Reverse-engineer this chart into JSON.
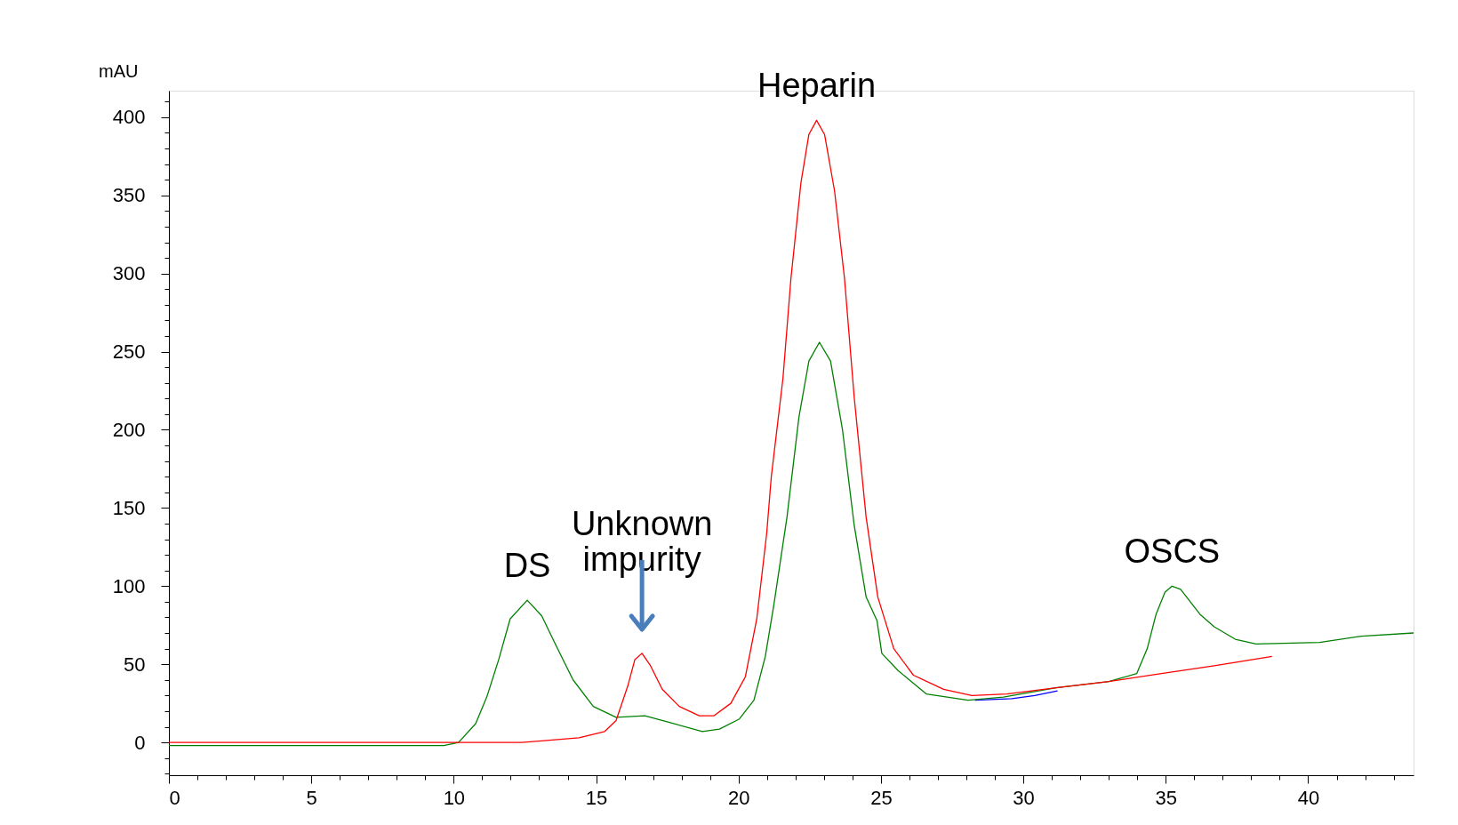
{
  "chart_data": {
    "type": "line",
    "ylabel": "mAU",
    "xlim": [
      0,
      43.7
    ],
    "ylim": [
      -21,
      417
    ],
    "xticks": [
      0,
      {
        "value": 1,
        "label": null
      },
      {
        "value": 2,
        "label": null
      },
      {
        "value": 3,
        "label": null
      },
      {
        "value": 4,
        "label": null
      },
      5,
      {
        "value": 6,
        "label": null
      },
      {
        "value": 7,
        "label": null
      },
      {
        "value": 8,
        "label": null
      },
      {
        "value": 9,
        "label": null
      },
      10,
      {
        "value": 11,
        "label": null
      },
      {
        "value": 12,
        "label": null
      },
      {
        "value": 13,
        "label": null
      },
      {
        "value": 14,
        "label": null
      },
      15,
      {
        "value": 16,
        "label": null
      },
      {
        "value": 17,
        "label": null
      },
      {
        "value": 18,
        "label": null
      },
      {
        "value": 19,
        "label": null
      },
      20,
      {
        "value": 21,
        "label": null
      },
      {
        "value": 22,
        "label": null
      },
      {
        "value": 23,
        "label": null
      },
      {
        "value": 24,
        "label": null
      },
      25,
      {
        "value": 26,
        "label": null
      },
      {
        "value": 27,
        "label": null
      },
      {
        "value": 28,
        "label": null
      },
      {
        "value": 29,
        "label": null
      },
      30,
      {
        "value": 31,
        "label": null
      },
      {
        "value": 32,
        "label": null
      },
      {
        "value": 33,
        "label": null
      },
      {
        "value": 34,
        "label": null
      },
      35,
      {
        "value": 36,
        "label": null
      },
      {
        "value": 37,
        "label": null
      },
      {
        "value": 38,
        "label": null
      },
      {
        "value": 39,
        "label": null
      },
      40,
      {
        "value": 41,
        "label": null
      },
      {
        "value": 42,
        "label": null
      },
      {
        "value": 43,
        "label": null
      }
    ],
    "yticks": [
      {
        "value": -20,
        "label": null
      },
      {
        "value": -10,
        "label": null
      },
      0,
      {
        "value": 10,
        "label": null
      },
      {
        "value": 20,
        "label": null
      },
      {
        "value": 30,
        "label": null
      },
      {
        "value": 40,
        "label": null
      },
      50,
      {
        "value": 60,
        "label": null
      },
      {
        "value": 70,
        "label": null
      },
      {
        "value": 80,
        "label": null
      },
      {
        "value": 90,
        "label": null
      },
      100,
      {
        "value": 110,
        "label": null
      },
      {
        "value": 120,
        "label": null
      },
      {
        "value": 130,
        "label": null
      },
      {
        "value": 140,
        "label": null
      },
      150,
      {
        "value": 160,
        "label": null
      },
      {
        "value": 170,
        "label": null
      },
      {
        "value": 180,
        "label": null
      },
      {
        "value": 190,
        "label": null
      },
      200,
      {
        "value": 210,
        "label": null
      },
      {
        "value": 220,
        "label": null
      },
      {
        "value": 230,
        "label": null
      },
      {
        "value": 240,
        "label": null
      },
      250,
      {
        "value": 260,
        "label": null
      },
      {
        "value": 270,
        "label": null
      },
      {
        "value": 280,
        "label": null
      },
      {
        "value": 290,
        "label": null
      },
      300,
      {
        "value": 310,
        "label": null
      },
      {
        "value": 320,
        "label": null
      },
      {
        "value": 330,
        "label": null
      },
      {
        "value": 340,
        "label": null
      },
      350,
      {
        "value": 360,
        "label": null
      },
      {
        "value": 370,
        "label": null
      },
      {
        "value": 380,
        "label": null
      },
      {
        "value": 390,
        "label": null
      },
      400,
      {
        "value": 410,
        "label": null
      }
    ],
    "grid": false,
    "legend": false,
    "marker": "none",
    "line_style": "solid",
    "series": [
      {
        "color": "#0000ff",
        "x": [
          28.3,
          29.6,
          30.4,
          31.2
        ],
        "values": [
          27,
          28,
          30,
          33
        ]
      },
      {
        "color": "#008000",
        "x": [
          0,
          9.65,
          10.17,
          10.77,
          11.16,
          11.58,
          11.98,
          12.58,
          13.09,
          13.59,
          14.19,
          14.9,
          15.7,
          16.71,
          17.52,
          18.73,
          19.33,
          20.03,
          20.54,
          20.94,
          21.24,
          21.7,
          22.12,
          22.47,
          22.84,
          23.23,
          23.65,
          24.06,
          24.48,
          24.86,
          25.03,
          25.6,
          26.59,
          28.06,
          29.3,
          31.15,
          33.0,
          33.98,
          34.35,
          34.66,
          34.97,
          35.22,
          35.52,
          36.2,
          36.7,
          37.44,
          38.17,
          40.4,
          41.87,
          43.7
        ],
        "values": [
          -2,
          -2,
          0,
          12,
          29,
          53,
          79,
          91,
          81,
          62,
          40,
          23,
          16,
          17,
          13,
          7,
          8.5,
          15,
          27,
          55,
          88,
          144,
          208,
          244,
          256,
          244,
          200,
          139,
          93,
          78,
          57,
          46,
          31,
          27,
          29,
          35,
          39,
          44,
          60,
          82,
          96,
          100,
          98,
          82,
          74,
          66,
          63,
          64,
          68,
          70
        ]
      },
      {
        "color": "#ff0000",
        "x": [
          0,
          12.38,
          13.09,
          14.4,
          15.3,
          15.7,
          16.11,
          16.36,
          16.61,
          16.91,
          17.32,
          17.92,
          18.62,
          19.13,
          19.73,
          20.24,
          20.64,
          20.99,
          21.15,
          21.56,
          21.84,
          22.19,
          22.47,
          22.74,
          23.02,
          23.37,
          23.72,
          24.06,
          24.48,
          24.89,
          25.45,
          26.14,
          27.2,
          28.19,
          29.42,
          31.15,
          33.0,
          34.85,
          36.7,
          38.73
        ],
        "values": [
          0,
          0,
          1,
          3,
          7,
          14,
          36,
          53,
          57,
          49,
          34,
          23,
          17,
          17,
          25,
          42,
          79,
          134,
          170,
          233,
          297,
          358,
          389,
          398,
          389,
          353,
          297,
          221,
          144,
          93,
          60,
          43,
          34,
          30,
          31,
          35,
          39,
          44,
          49,
          55
        ]
      }
    ],
    "annotations": [
      {
        "text": "DS",
        "x": 12.58,
        "y": 91
      },
      {
        "text": "Unknown\nimpurity",
        "x": 16.61,
        "y": 57
      },
      {
        "text": "Heparin",
        "x": 22.74,
        "y": 398
      },
      {
        "text": "OSCS",
        "x": 35.22,
        "y": 100
      }
    ]
  }
}
